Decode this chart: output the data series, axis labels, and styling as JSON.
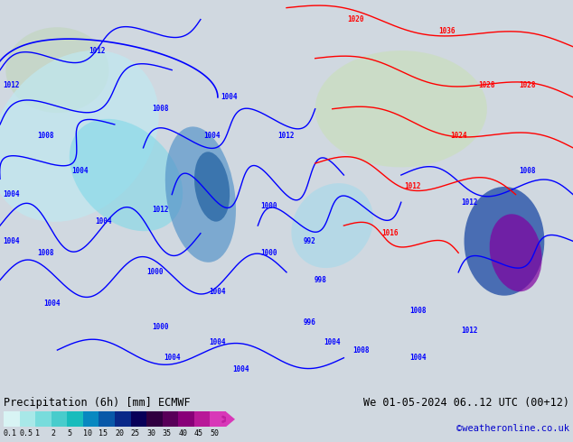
{
  "title_left": "Precipitation (6h) [mm] ECMWF",
  "title_right": "We 01-05-2024 06..12 UTC (00+12)",
  "credit": "©weatheronline.co.uk",
  "colorbar_values": [
    0.1,
    0.5,
    1,
    2,
    5,
    10,
    15,
    20,
    25,
    30,
    35,
    40,
    45,
    50
  ],
  "colorbar_colors": [
    "#e0f8f8",
    "#b0ecec",
    "#80dfdf",
    "#50d0d0",
    "#20c0c0",
    "#1090c8",
    "#1060b0",
    "#103090",
    "#100860",
    "#380048",
    "#600060",
    "#901080",
    "#c020a0",
    "#e040c0",
    "#f060d8"
  ],
  "bg_color": "#d0d8e0",
  "map_bg": "#c8d4dc",
  "fig_width": 6.34,
  "fig_height": 4.9,
  "dpi": 100
}
